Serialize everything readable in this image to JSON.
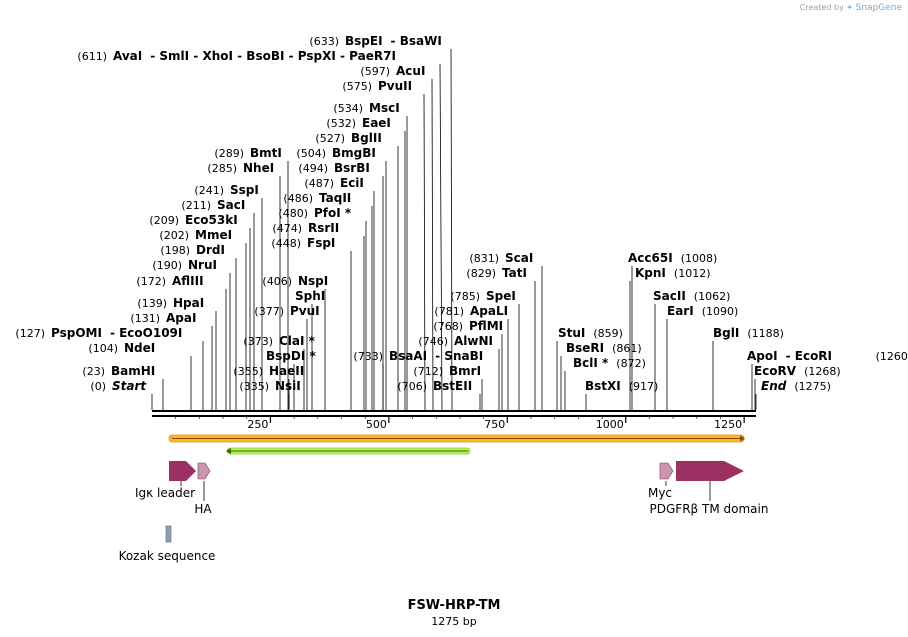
{
  "credit": {
    "prefix": "Created by",
    "brand": "SnapGene"
  },
  "title": "FSW-HRP-TM",
  "subtitle": "1275 bp",
  "colors": {
    "feature": "#9b3063",
    "feature_light": "#c897ae",
    "orf_orange": "#f7b731",
    "orf_green": "#b8f25a",
    "kozak": "#8ea0b4"
  },
  "axis": {
    "length": 1275,
    "ticks": [
      "250",
      "500",
      "750",
      "1000",
      "1250"
    ]
  },
  "enzymes_left": [
    {
      "pos": "(633)",
      "name": "BspEI",
      "extra": "- BsaWI"
    },
    {
      "pos": "(611)",
      "name": "AvaI",
      "extra": "- SmlI  - XhoI  - BsoBI  - PspXI  - PaeR7I"
    },
    {
      "pos": "(597)",
      "name": "AcuI",
      "extra": ""
    },
    {
      "pos": "(575)",
      "name": "PvuII",
      "extra": ""
    },
    {
      "pos": "(534)",
      "name": "MscI",
      "extra": ""
    },
    {
      "pos": "(532)",
      "name": "EaeI",
      "extra": ""
    },
    {
      "pos": "(527)",
      "name": "BglII",
      "extra": ""
    },
    {
      "pos": "(289)",
      "name": "BmtI",
      "extra": ""
    },
    {
      "pos": "(504)",
      "name": "BmgBI",
      "extra": ""
    },
    {
      "pos": "(285)",
      "name": "NheI",
      "extra": ""
    },
    {
      "pos": "(494)",
      "name": "BsrBI",
      "extra": ""
    },
    {
      "pos": "(487)",
      "name": "EciI",
      "extra": ""
    },
    {
      "pos": "(241)",
      "name": "SspI",
      "extra": ""
    },
    {
      "pos": "(486)",
      "name": "TaqII",
      "extra": ""
    },
    {
      "pos": "(211)",
      "name": "SacI",
      "extra": ""
    },
    {
      "pos": "(480)",
      "name": "PfoI *",
      "extra": ""
    },
    {
      "pos": "(209)",
      "name": "Eco53kI",
      "extra": ""
    },
    {
      "pos": "(474)",
      "name": "RsrII",
      "extra": ""
    },
    {
      "pos": "(202)",
      "name": "MmeI",
      "extra": ""
    },
    {
      "pos": "(448)",
      "name": "FspI",
      "extra": ""
    },
    {
      "pos": "(198)",
      "name": "DrdI",
      "extra": ""
    },
    {
      "pos": "(190)",
      "name": "NruI",
      "extra": ""
    },
    {
      "pos": "(406)",
      "name": "NspI",
      "extra": ""
    },
    {
      "pos": "(172)",
      "name": "AflIII",
      "extra": ""
    },
    {
      "pos": "",
      "name": "SphI",
      "extra": ""
    },
    {
      "pos": "(139)",
      "name": "HpaI",
      "extra": ""
    },
    {
      "pos": "(377)",
      "name": "PvuI",
      "extra": ""
    },
    {
      "pos": "(131)",
      "name": "ApaI",
      "extra": ""
    },
    {
      "pos": "(127)",
      "name": "PspOMI",
      "extra": "- EcoO109I"
    },
    {
      "pos": "(373)",
      "name": "ClaI *",
      "extra": ""
    },
    {
      "pos": "(104)",
      "name": "NdeI",
      "extra": ""
    },
    {
      "pos": "",
      "name": "BspDI *",
      "extra": ""
    },
    {
      "pos": "(733)",
      "name": "BsaAI",
      "extra": "- SnaBI"
    },
    {
      "pos": "(355)",
      "name": "HaeII",
      "extra": ""
    },
    {
      "pos": "(23)",
      "name": "BamHI",
      "extra": ""
    },
    {
      "pos": "(335)",
      "name": "NsiI",
      "extra": ""
    },
    {
      "pos": "(0)",
      "name": "Start",
      "extra": ""
    }
  ],
  "enzymes_right": [
    {
      "pos": "(831)",
      "name": "ScaI"
    },
    {
      "pos": "(829)",
      "name": "TatI"
    },
    {
      "pos": "(785)",
      "name": "SpeI"
    },
    {
      "pos": "(781)",
      "name": "ApaLI"
    },
    {
      "pos": "(768)",
      "name": "PflMI"
    },
    {
      "pos": "(746)",
      "name": "AlwNI"
    },
    {
      "pos": "(712)",
      "name": "BmrI"
    },
    {
      "pos": "(706)",
      "name": "BstEII"
    },
    {
      "pos": "(1008)",
      "name": "Acc65I"
    },
    {
      "pos": "(1012)",
      "name": "KpnI"
    },
    {
      "pos": "(1062)",
      "name": "SacII"
    },
    {
      "pos": "(1090)",
      "name": "EarI"
    },
    {
      "pos": "(1188)",
      "name": "BglI"
    },
    {
      "pos": "(859)",
      "name": "StuI"
    },
    {
      "pos": "(861)",
      "name": "BseRI"
    },
    {
      "pos": "(872)",
      "name": "BclI *"
    },
    {
      "pos": "(917)",
      "name": "BstXI"
    },
    {
      "pos": "(1260)",
      "name": "ApoI",
      "extra": "- EcoRI"
    },
    {
      "pos": "(1268)",
      "name": "EcoRV"
    },
    {
      "pos": "(1275)",
      "name": "End"
    }
  ],
  "features": [
    {
      "name": "Igκ leader"
    },
    {
      "name": "HA"
    },
    {
      "name": "Kozak sequence"
    },
    {
      "name": "Myc"
    },
    {
      "name": "PDGFRβ TM domain"
    }
  ]
}
